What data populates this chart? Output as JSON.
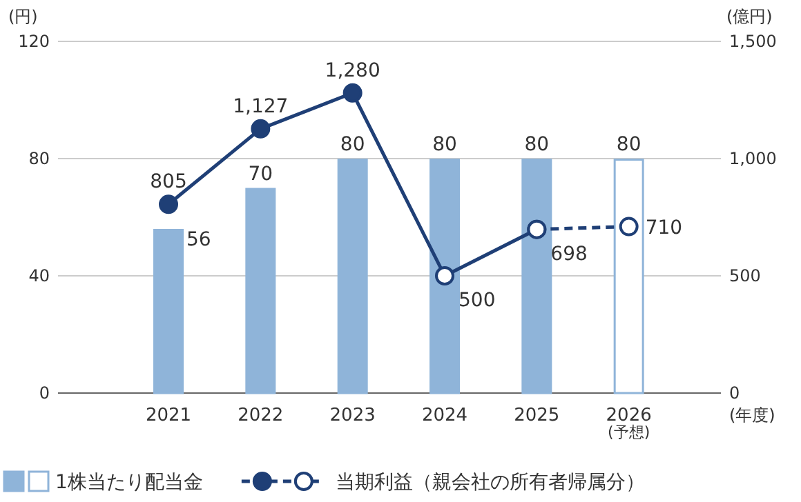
{
  "chart_data": {
    "type": "bar",
    "categories": [
      "2021",
      "2022",
      "2023",
      "2024",
      "2025",
      "2026$_{(予想)}$"
    ],
    "ylabel": "(円)",
    "y2label": "(億円)",
    "xlabel": "(年度)",
    "ylim": [
      0,
      120
    ],
    "yticks": [
      0,
      40,
      80,
      120
    ],
    "y2lim": [
      0,
      1500
    ],
    "y2ticks": [
      0,
      500,
      {
        "value": 1000,
        "label": "1,000"
      },
      {
        "value": 1500,
        "label": "1,500"
      }
    ],
    "grid": "y",
    "legend": "bottom",
    "data_labels": true,
    "series": [
      {
        "name": "1株当たり配当金",
        "color": "#8fb4d9",
        "colors": [
          "#8fb4d9",
          "#8fb4d9",
          "#8fb4d9",
          "#8fb4d9",
          "#8fb4d9",
          "#ffffff"
        ],
        "values": [
          56,
          70,
          80,
          80,
          80,
          80
        ]
      },
      {
        "name": "当期利益（親会社の所有者帰属分）",
        "type": "line",
        "axis": "y2",
        "color": "#1f3f76",
        "line_style": "solid",
        "marker": "circle",
        "colors": [
          "#1f3f76",
          "#1f3f76",
          "#1f3f76",
          "#ffffff",
          "#ffffff",
          null
        ],
        "values": [
          805,
          1127,
          1280,
          500,
          698,
          null
        ],
        "value_labels": [
          "805",
          "1,127",
          "1,280",
          "500",
          "698",
          null
        ]
      },
      {
        "type": "line",
        "axis": "y2",
        "color": "#1f3f76",
        "line_style": "dashed",
        "marker": "circle",
        "colors": [
          null,
          null,
          null,
          null,
          "#ffffff",
          "#ffffff"
        ],
        "values": [
          null,
          null,
          null,
          null,
          698,
          710
        ],
        "value_labels": [
          null,
          null,
          null,
          null,
          null,
          "710"
        ]
      }
    ]
  }
}
